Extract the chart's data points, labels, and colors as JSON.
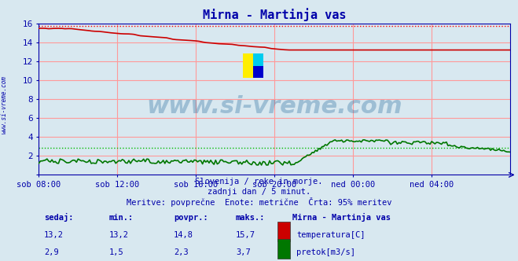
{
  "title": "Mirna - Martinja vas",
  "bg_color": "#d8e8f0",
  "grid_color_major": "#ff9999",
  "x_ticks_labels": [
    "sob 08:00",
    "sob 12:00",
    "sob 16:00",
    "sob 20:00",
    "ned 00:00",
    "ned 04:00"
  ],
  "x_ticks_positions": [
    0,
    48,
    96,
    144,
    192,
    240
  ],
  "x_max": 288,
  "y_min": 0,
  "y_max": 16,
  "y_ticks": [
    0,
    2,
    4,
    6,
    8,
    10,
    12,
    14,
    16
  ],
  "temp_color": "#cc0000",
  "flow_color": "#007700",
  "temp_max_line_color": "#ff0000",
  "flow_ref_line_color": "#00bb00",
  "axis_color": "#0000aa",
  "text_color": "#0000aa",
  "title_color": "#0000aa",
  "watermark_text": "www.si-vreme.com",
  "watermark_color": "#3070a0",
  "watermark_alpha": 0.35,
  "sub_text1": "Slovenija / reke in morje.",
  "sub_text2": "zadnji dan / 5 minut.",
  "sub_text3": "Meritve: povprečne  Enote: metrične  Črta: 95% meritev",
  "legend_title": "Mirna - Martinja vas",
  "legend_labels": [
    "temperatura[C]",
    "pretok[m3/s]"
  ],
  "legend_colors": [
    "#cc0000",
    "#007700"
  ],
  "table_headers": [
    "sedaj:",
    "min.:",
    "povpr.:",
    "maks.:"
  ],
  "table_row1": [
    "13,2",
    "13,2",
    "14,8",
    "15,7"
  ],
  "table_row2": [
    "2,9",
    "1,5",
    "2,3",
    "3,7"
  ],
  "temp_max": 15.7,
  "flow_max": 3.7,
  "flow_ref_line": 2.9
}
